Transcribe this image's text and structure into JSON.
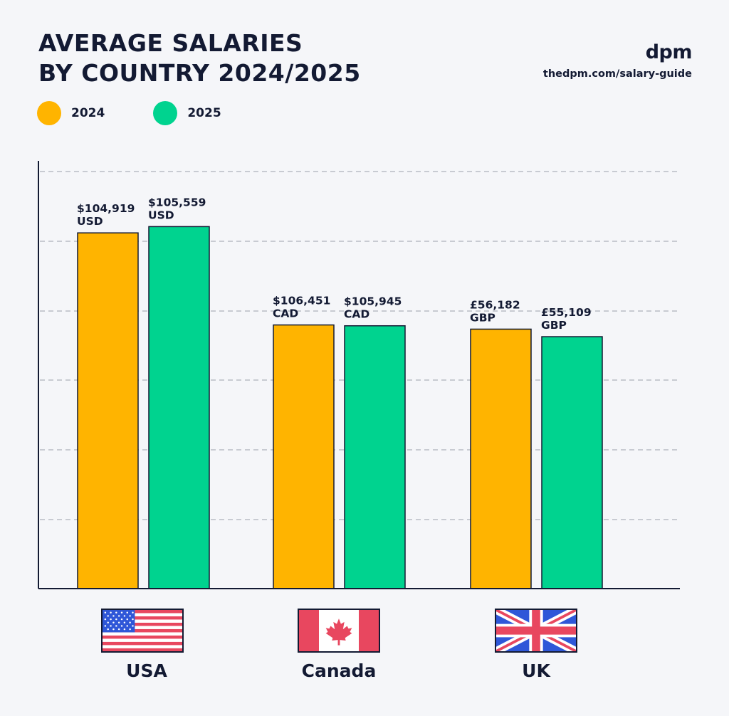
{
  "header": {
    "title_line1": "AVERAGE SALARIES",
    "title_line2": "BY COUNTRY 2024/2025",
    "brand": "dpm",
    "url": "thedpm.com/salary-guide"
  },
  "colors": {
    "series_2024": "#ffb400",
    "series_2025": "#00d38f",
    "axis": "#131a33",
    "grid": "#9aa0aa"
  },
  "flags": [
    "us-flag-icon",
    "canada-flag-icon",
    "uk-flag-icon"
  ],
  "chart_data": {
    "type": "bar",
    "title": "AVERAGE SALARIES BY COUNTRY 2024/2025",
    "categories": [
      "USA",
      "Canada",
      "UK"
    ],
    "series": [
      {
        "name": "2024",
        "values": [
          104919,
          106451,
          56182
        ],
        "currencies": [
          "USD",
          "CAD",
          "GBP"
        ],
        "labels": [
          "$104,919",
          "$106,451",
          "£56,182"
        ],
        "bar_height_fraction": [
          0.85,
          0.63,
          0.62
        ]
      },
      {
        "name": "2025",
        "values": [
          105559,
          105945,
          55109
        ],
        "currencies": [
          "USD",
          "CAD",
          "GBP"
        ],
        "labels": [
          "$105,559",
          "$105,945",
          "£55,109"
        ],
        "bar_height_fraction": [
          0.865,
          0.628,
          0.602
        ]
      }
    ],
    "grid": true,
    "legend": "top-left",
    "xlabel": "",
    "ylabel": ""
  }
}
